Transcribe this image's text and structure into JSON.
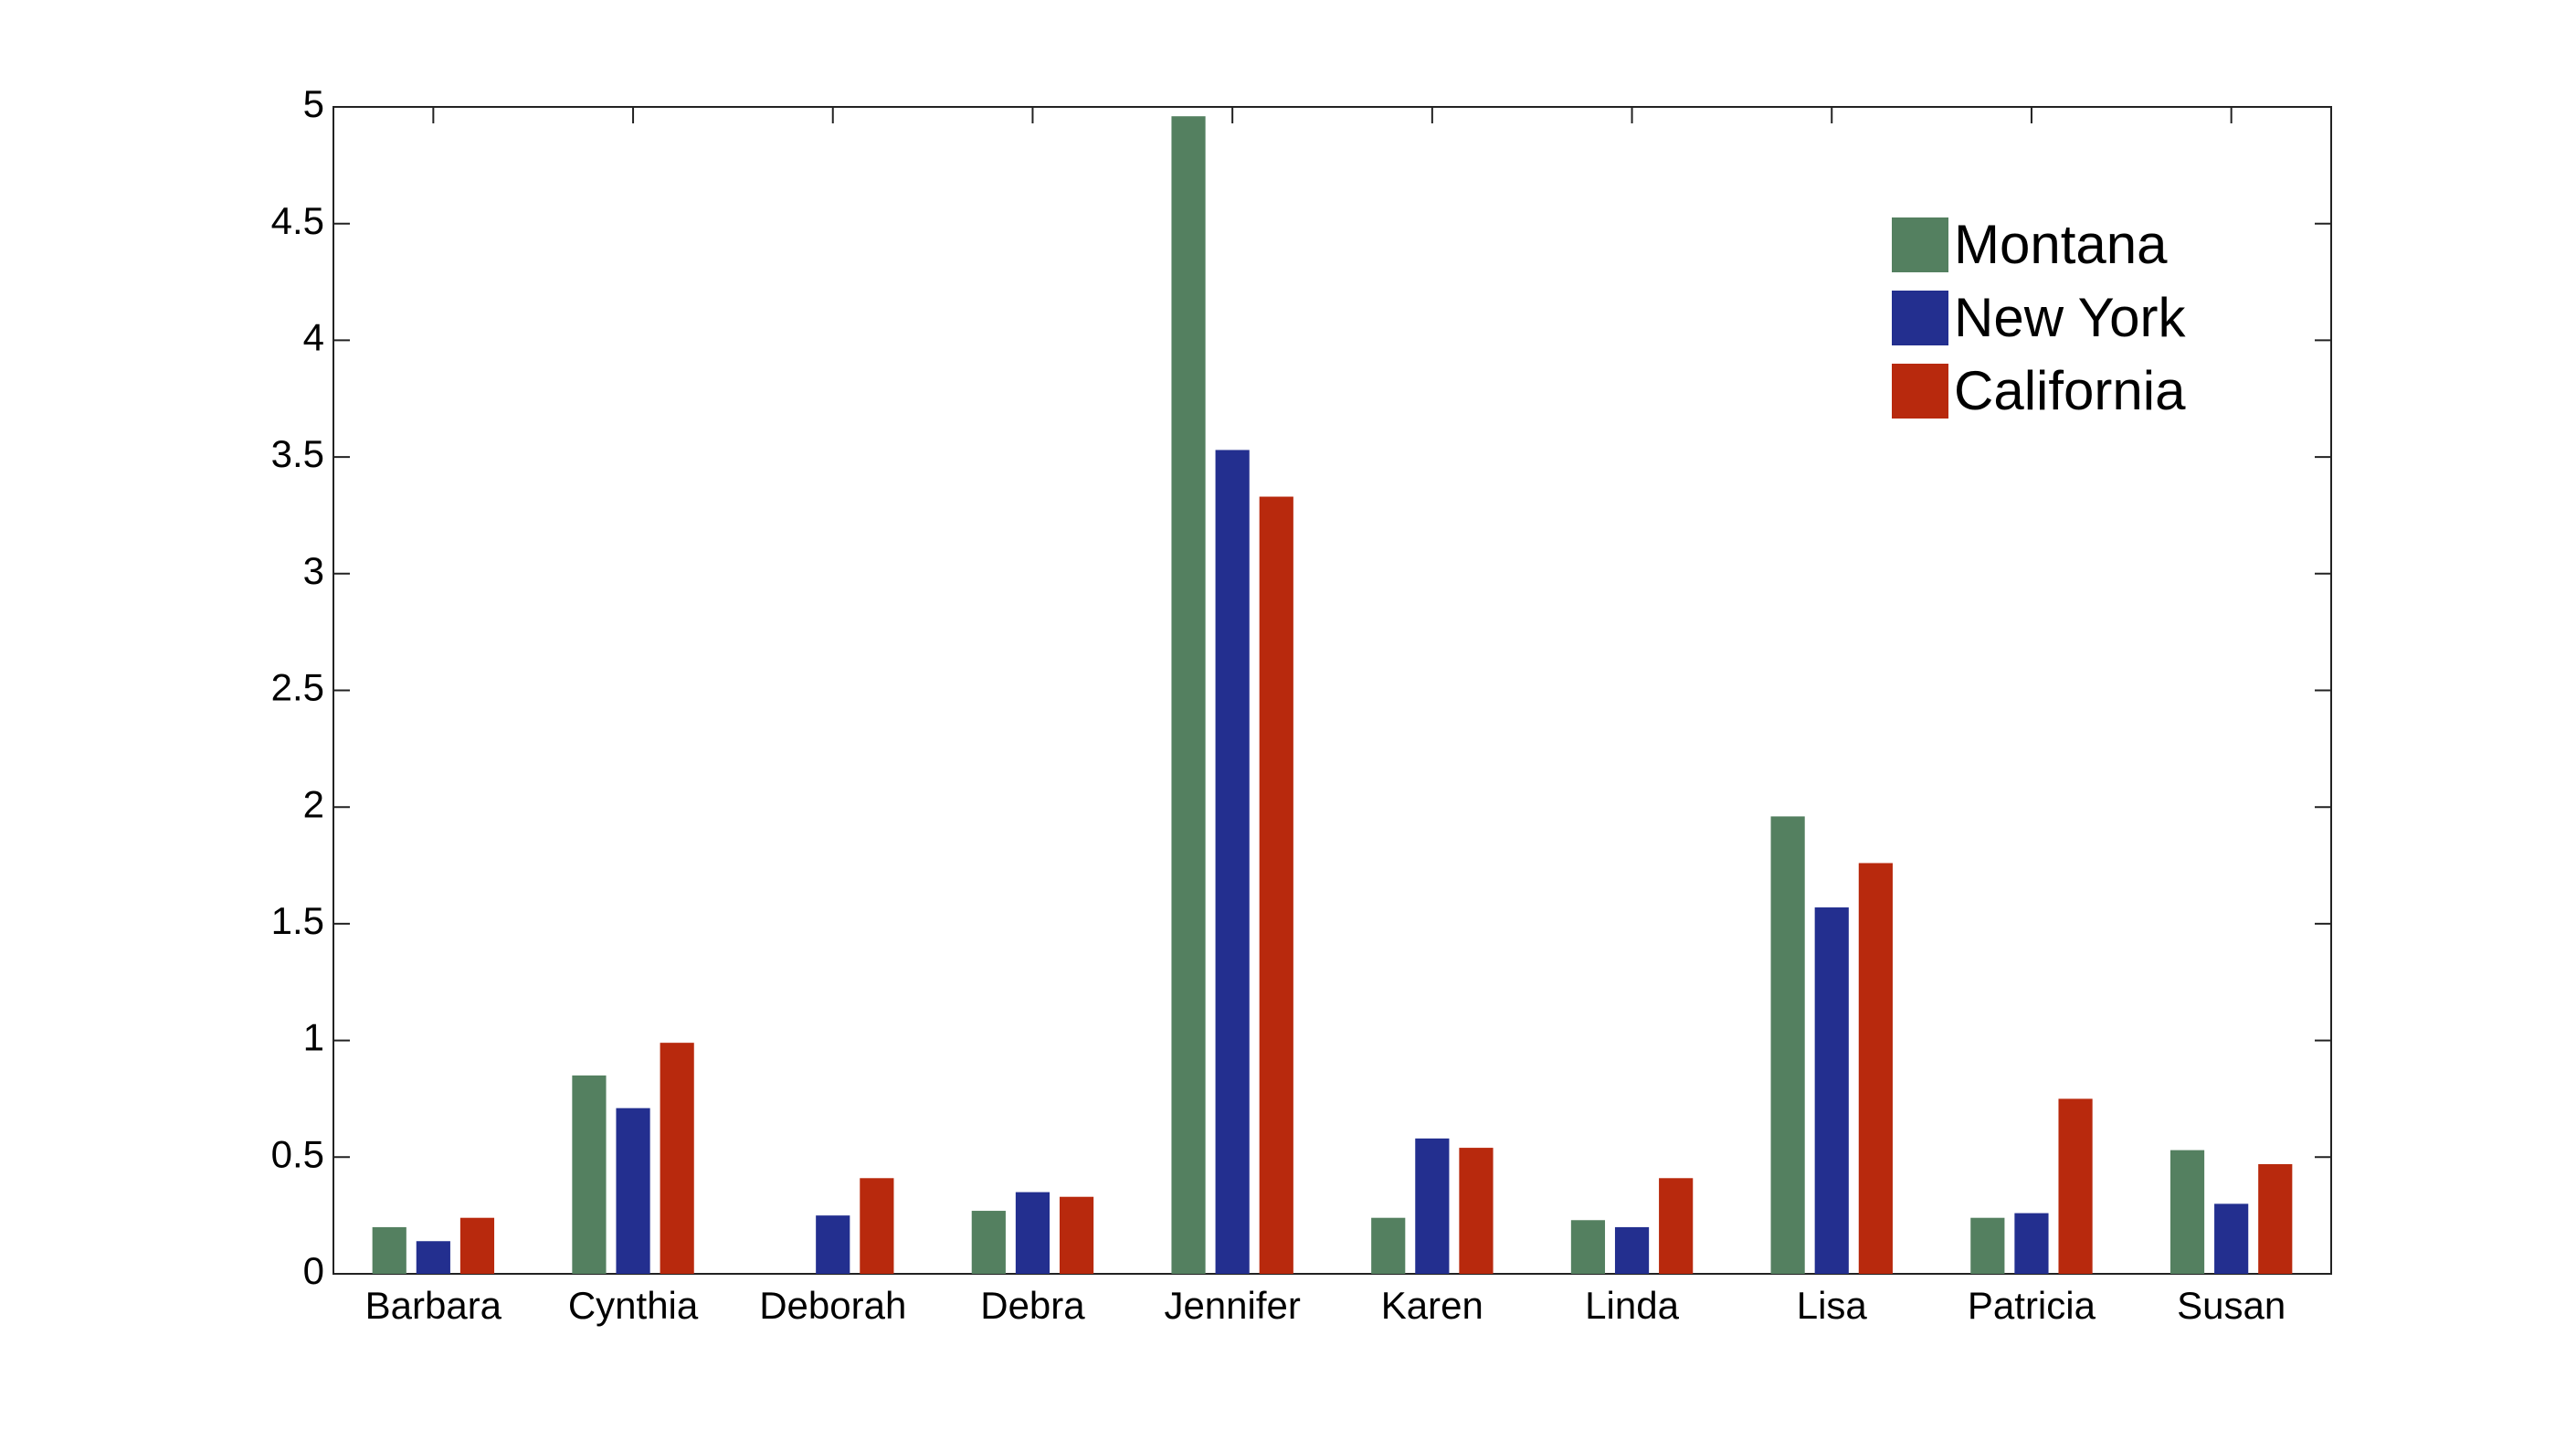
{
  "chart_data": {
    "type": "bar",
    "categories": [
      "Barbara",
      "Cynthia",
      "Deborah",
      "Debra",
      "Jennifer",
      "Karen",
      "Linda",
      "Lisa",
      "Patricia",
      "Susan"
    ],
    "series": [
      {
        "name": "Montana",
        "color": "#548060",
        "values": [
          0.2,
          0.85,
          0,
          0.27,
          4.96,
          0.24,
          0.23,
          1.96,
          0.24,
          0.53
        ]
      },
      {
        "name": "New York",
        "color": "#232f8f",
        "values": [
          0.14,
          0.71,
          0.25,
          0.35,
          3.53,
          0.58,
          0.2,
          1.57,
          0.26,
          0.3
        ]
      },
      {
        "name": "California",
        "color": "#b8290d",
        "values": [
          0.24,
          0.99,
          0.41,
          0.33,
          3.33,
          0.54,
          0.41,
          1.76,
          0.75,
          0.47
        ]
      }
    ],
    "ylim": [
      0,
      5
    ],
    "yticks": [
      0,
      0.5,
      1,
      1.5,
      2,
      2.5,
      3,
      3.5,
      4,
      4.5,
      5
    ],
    "grid": false,
    "legend": "top-right"
  }
}
